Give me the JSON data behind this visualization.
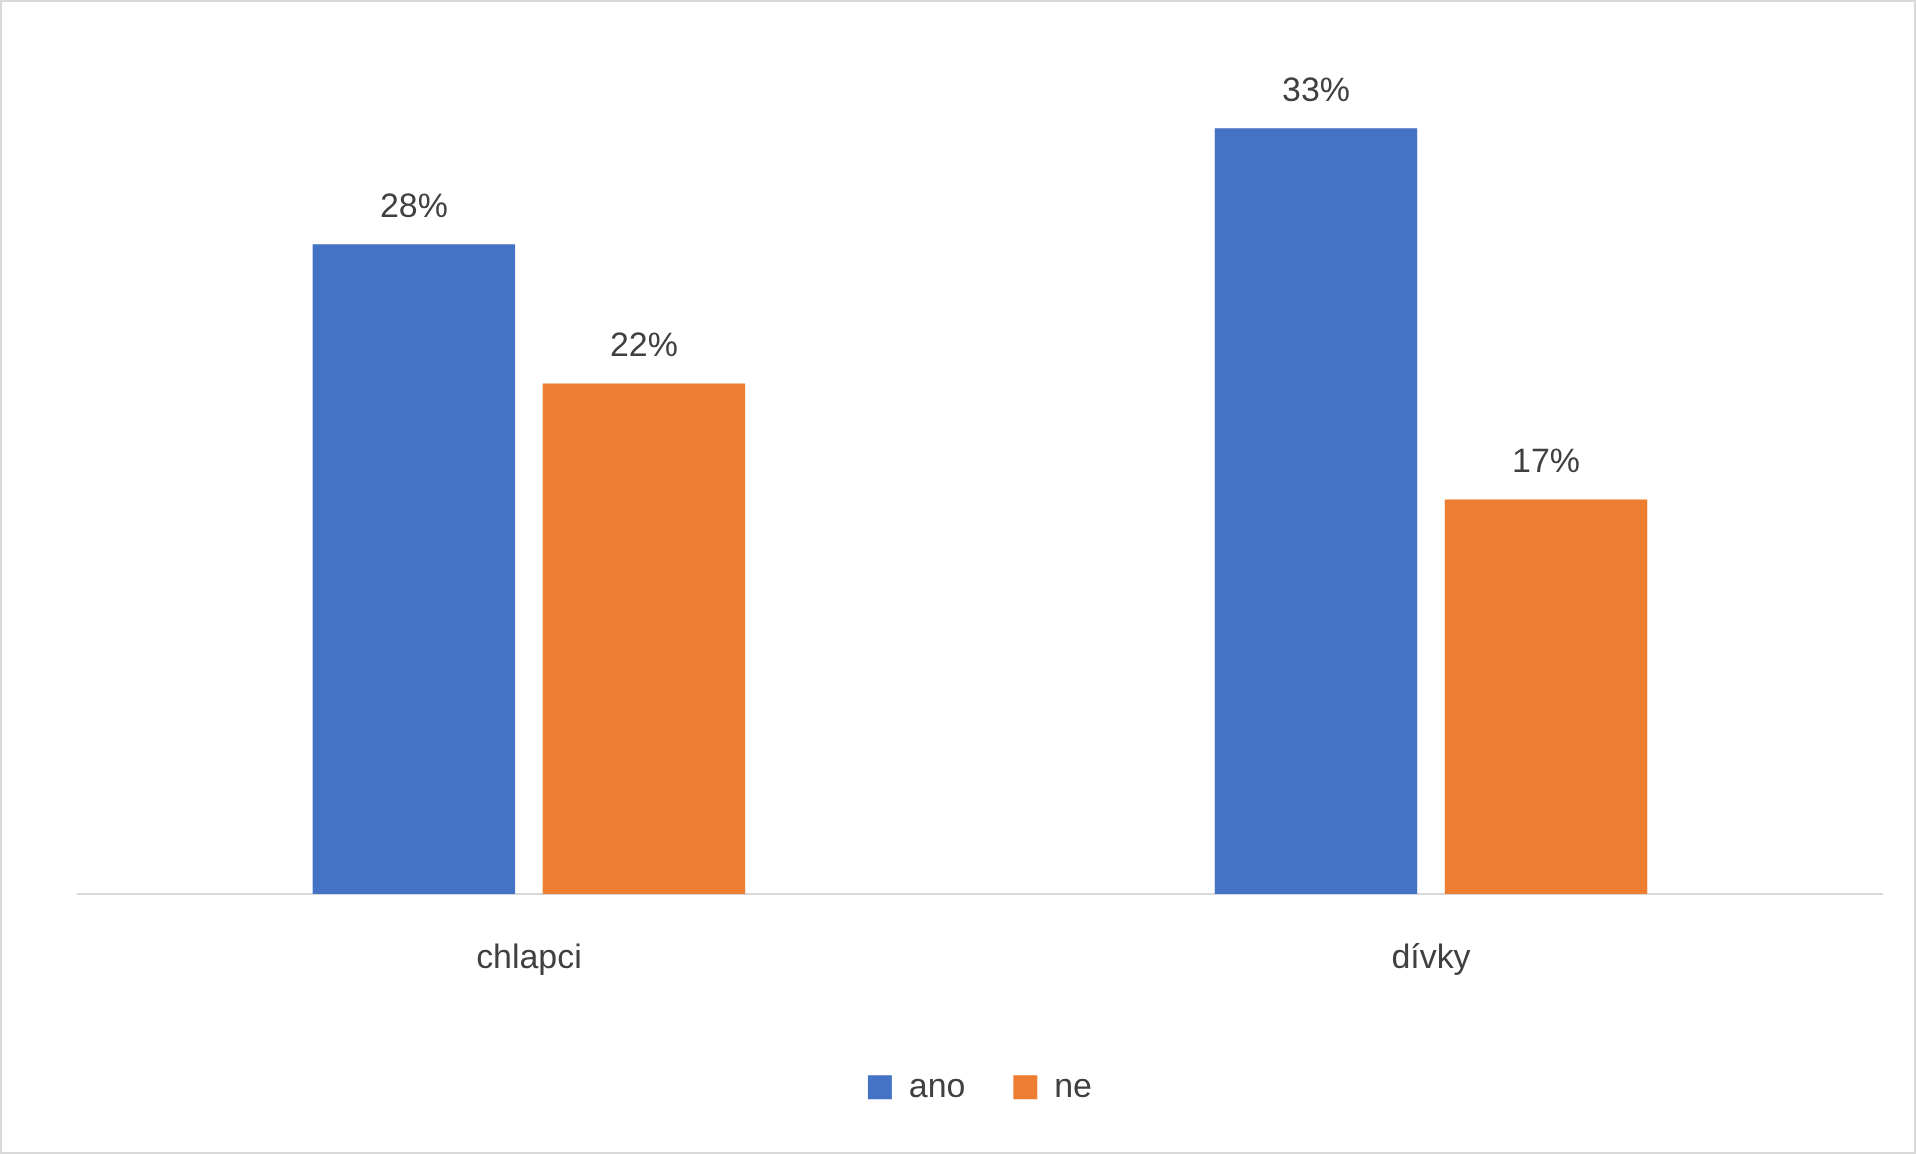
{
  "chart_data": {
    "type": "bar",
    "categories": [
      "chlapci",
      "dívky"
    ],
    "series": [
      {
        "name": "ano",
        "color": "#4472c4",
        "values": [
          28,
          33
        ],
        "value_labels": [
          "28%",
          "33%"
        ]
      },
      {
        "name": "ne",
        "color": "#ed7d31",
        "values": [
          22,
          17
        ],
        "value_labels": [
          "22%",
          "17%"
        ]
      }
    ],
    "tick_labels": "x",
    "legend": "bottom",
    "grid": false
  }
}
